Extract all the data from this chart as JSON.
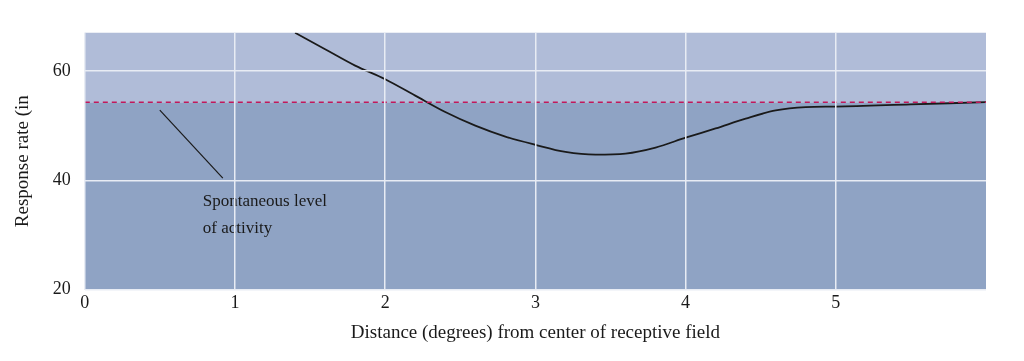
{
  "chart_data": {
    "type": "line",
    "xlabel": "Distance (degrees) from center of receptive field",
    "ylabel": "Response rate (in",
    "x": [
      1.4,
      1.6,
      1.8,
      2,
      2.2,
      2.4,
      2.6,
      2.8,
      3,
      3.2,
      3.4,
      3.6,
      3.8,
      4,
      4.2,
      4.4,
      4.6,
      4.8,
      5,
      5.5,
      6
    ],
    "series": [
      {
        "color": "#1a1a1a",
        "values": [
          67,
          64,
          61,
          58.5,
          55.5,
          52.5,
          50,
          48,
          46.5,
          45.2,
          44.7,
          44.9,
          46,
          47.8,
          49.5,
          51.3,
          52.8,
          53.4,
          53.5,
          53.9,
          54.3
        ]
      }
    ],
    "xlim": [
      0,
      6
    ],
    "xticks": [
      0,
      1,
      2,
      3,
      4,
      5
    ],
    "ylim": [
      20,
      67
    ],
    "yticks": [
      20,
      40,
      60
    ],
    "grid": true,
    "legend": false,
    "marker": "none",
    "line_style": "solid",
    "ref_lines": [
      {
        "axis": "y",
        "value": 54.3,
        "color": "#c2185b",
        "line_style": "dashed",
        "label": "Spontaneous level\nof activity"
      }
    ],
    "bands": [
      {
        "axis": "y",
        "from": 20,
        "to": 54.3,
        "color": "#8fa3c4"
      },
      {
        "axis": "y",
        "from": 54.3,
        "to": 67,
        "color": "#b0bcd8"
      }
    ]
  }
}
